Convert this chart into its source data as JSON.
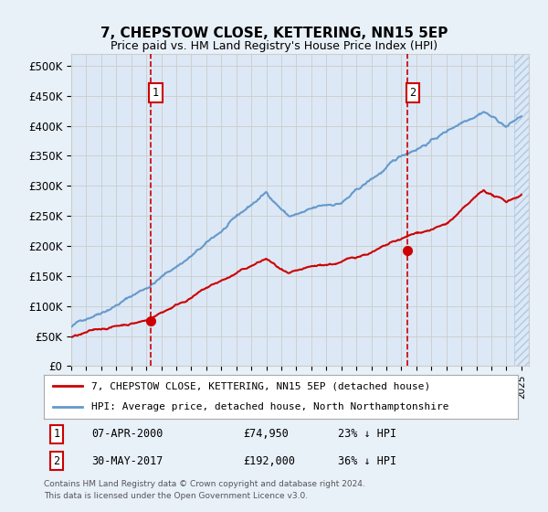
{
  "title": "7, CHEPSTOW CLOSE, KETTERING, NN15 5EP",
  "subtitle": "Price paid vs. HM Land Registry's House Price Index (HPI)",
  "ylabel_ticks": [
    "£0",
    "£50K",
    "£100K",
    "£150K",
    "£200K",
    "£250K",
    "£300K",
    "£350K",
    "£400K",
    "£450K",
    "£500K"
  ],
  "ytick_values": [
    0,
    50000,
    100000,
    150000,
    200000,
    250000,
    300000,
    350000,
    400000,
    450000,
    500000
  ],
  "ylim": [
    0,
    520000
  ],
  "xlim_start": 1995.0,
  "xlim_end": 2025.5,
  "hpi_color": "#6699cc",
  "price_color": "#cc0000",
  "transaction1_x": 2000.27,
  "transaction1_y": 74950,
  "transaction2_x": 2017.41,
  "transaction2_y": 192000,
  "transaction1_date": "07-APR-2000",
  "transaction1_price": "£74,950",
  "transaction1_hpi": "23% ↓ HPI",
  "transaction2_date": "30-MAY-2017",
  "transaction2_price": "£192,000",
  "transaction2_hpi": "36% ↓ HPI",
  "legend_line1": "7, CHEPSTOW CLOSE, KETTERING, NN15 5EP (detached house)",
  "legend_line2": "HPI: Average price, detached house, North Northamptonshire",
  "footer1": "Contains HM Land Registry data © Crown copyright and database right 2024.",
  "footer2": "This data is licensed under the Open Government Licence v3.0.",
  "background_color": "#e8f0f8",
  "plot_bg_color": "#dce8f5"
}
